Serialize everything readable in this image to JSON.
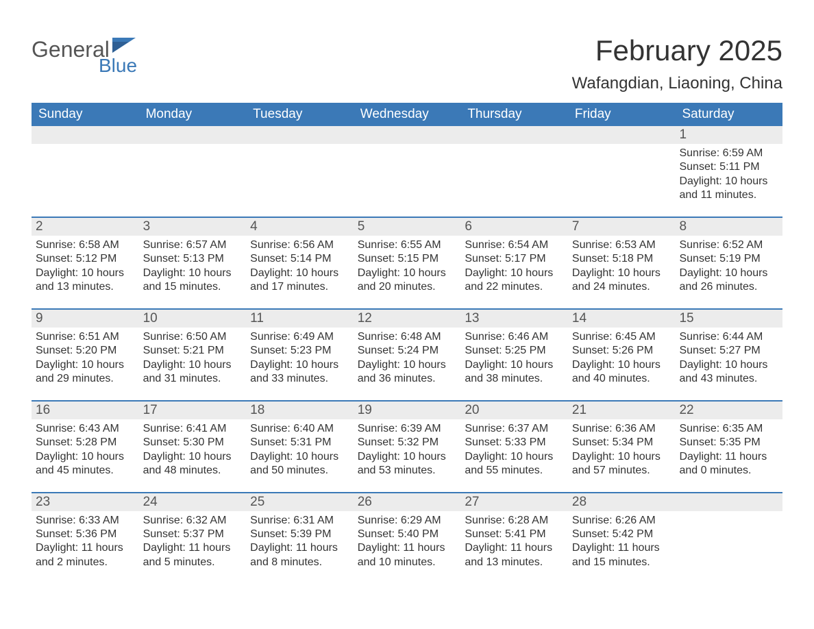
{
  "logo": {
    "word1": "General",
    "word2": "Blue"
  },
  "title": "February 2025",
  "location": "Wafangdian, Liaoning, China",
  "colors": {
    "header_bg": "#3b79b7",
    "header_text": "#ffffff",
    "daynum_bg": "#ececec",
    "daynum_text": "#555555",
    "rule": "#3b79b7",
    "body_text": "#333333",
    "logo_gray": "#555555",
    "logo_blue": "#3b79b7",
    "page_bg": "#ffffff"
  },
  "day_headers": [
    "Sunday",
    "Monday",
    "Tuesday",
    "Wednesday",
    "Thursday",
    "Friday",
    "Saturday"
  ],
  "weeks": [
    [
      null,
      null,
      null,
      null,
      null,
      null,
      {
        "n": "1",
        "sunrise": "Sunrise: 6:59 AM",
        "sunset": "Sunset: 5:11 PM",
        "day1": "Daylight: 10 hours",
        "day2": "and 11 minutes."
      }
    ],
    [
      {
        "n": "2",
        "sunrise": "Sunrise: 6:58 AM",
        "sunset": "Sunset: 5:12 PM",
        "day1": "Daylight: 10 hours",
        "day2": "and 13 minutes."
      },
      {
        "n": "3",
        "sunrise": "Sunrise: 6:57 AM",
        "sunset": "Sunset: 5:13 PM",
        "day1": "Daylight: 10 hours",
        "day2": "and 15 minutes."
      },
      {
        "n": "4",
        "sunrise": "Sunrise: 6:56 AM",
        "sunset": "Sunset: 5:14 PM",
        "day1": "Daylight: 10 hours",
        "day2": "and 17 minutes."
      },
      {
        "n": "5",
        "sunrise": "Sunrise: 6:55 AM",
        "sunset": "Sunset: 5:15 PM",
        "day1": "Daylight: 10 hours",
        "day2": "and 20 minutes."
      },
      {
        "n": "6",
        "sunrise": "Sunrise: 6:54 AM",
        "sunset": "Sunset: 5:17 PM",
        "day1": "Daylight: 10 hours",
        "day2": "and 22 minutes."
      },
      {
        "n": "7",
        "sunrise": "Sunrise: 6:53 AM",
        "sunset": "Sunset: 5:18 PM",
        "day1": "Daylight: 10 hours",
        "day2": "and 24 minutes."
      },
      {
        "n": "8",
        "sunrise": "Sunrise: 6:52 AM",
        "sunset": "Sunset: 5:19 PM",
        "day1": "Daylight: 10 hours",
        "day2": "and 26 minutes."
      }
    ],
    [
      {
        "n": "9",
        "sunrise": "Sunrise: 6:51 AM",
        "sunset": "Sunset: 5:20 PM",
        "day1": "Daylight: 10 hours",
        "day2": "and 29 minutes."
      },
      {
        "n": "10",
        "sunrise": "Sunrise: 6:50 AM",
        "sunset": "Sunset: 5:21 PM",
        "day1": "Daylight: 10 hours",
        "day2": "and 31 minutes."
      },
      {
        "n": "11",
        "sunrise": "Sunrise: 6:49 AM",
        "sunset": "Sunset: 5:23 PM",
        "day1": "Daylight: 10 hours",
        "day2": "and 33 minutes."
      },
      {
        "n": "12",
        "sunrise": "Sunrise: 6:48 AM",
        "sunset": "Sunset: 5:24 PM",
        "day1": "Daylight: 10 hours",
        "day2": "and 36 minutes."
      },
      {
        "n": "13",
        "sunrise": "Sunrise: 6:46 AM",
        "sunset": "Sunset: 5:25 PM",
        "day1": "Daylight: 10 hours",
        "day2": "and 38 minutes."
      },
      {
        "n": "14",
        "sunrise": "Sunrise: 6:45 AM",
        "sunset": "Sunset: 5:26 PM",
        "day1": "Daylight: 10 hours",
        "day2": "and 40 minutes."
      },
      {
        "n": "15",
        "sunrise": "Sunrise: 6:44 AM",
        "sunset": "Sunset: 5:27 PM",
        "day1": "Daylight: 10 hours",
        "day2": "and 43 minutes."
      }
    ],
    [
      {
        "n": "16",
        "sunrise": "Sunrise: 6:43 AM",
        "sunset": "Sunset: 5:28 PM",
        "day1": "Daylight: 10 hours",
        "day2": "and 45 minutes."
      },
      {
        "n": "17",
        "sunrise": "Sunrise: 6:41 AM",
        "sunset": "Sunset: 5:30 PM",
        "day1": "Daylight: 10 hours",
        "day2": "and 48 minutes."
      },
      {
        "n": "18",
        "sunrise": "Sunrise: 6:40 AM",
        "sunset": "Sunset: 5:31 PM",
        "day1": "Daylight: 10 hours",
        "day2": "and 50 minutes."
      },
      {
        "n": "19",
        "sunrise": "Sunrise: 6:39 AM",
        "sunset": "Sunset: 5:32 PM",
        "day1": "Daylight: 10 hours",
        "day2": "and 53 minutes."
      },
      {
        "n": "20",
        "sunrise": "Sunrise: 6:37 AM",
        "sunset": "Sunset: 5:33 PM",
        "day1": "Daylight: 10 hours",
        "day2": "and 55 minutes."
      },
      {
        "n": "21",
        "sunrise": "Sunrise: 6:36 AM",
        "sunset": "Sunset: 5:34 PM",
        "day1": "Daylight: 10 hours",
        "day2": "and 57 minutes."
      },
      {
        "n": "22",
        "sunrise": "Sunrise: 6:35 AM",
        "sunset": "Sunset: 5:35 PM",
        "day1": "Daylight: 11 hours",
        "day2": "and 0 minutes."
      }
    ],
    [
      {
        "n": "23",
        "sunrise": "Sunrise: 6:33 AM",
        "sunset": "Sunset: 5:36 PM",
        "day1": "Daylight: 11 hours",
        "day2": "and 2 minutes."
      },
      {
        "n": "24",
        "sunrise": "Sunrise: 6:32 AM",
        "sunset": "Sunset: 5:37 PM",
        "day1": "Daylight: 11 hours",
        "day2": "and 5 minutes."
      },
      {
        "n": "25",
        "sunrise": "Sunrise: 6:31 AM",
        "sunset": "Sunset: 5:39 PM",
        "day1": "Daylight: 11 hours",
        "day2": "and 8 minutes."
      },
      {
        "n": "26",
        "sunrise": "Sunrise: 6:29 AM",
        "sunset": "Sunset: 5:40 PM",
        "day1": "Daylight: 11 hours",
        "day2": "and 10 minutes."
      },
      {
        "n": "27",
        "sunrise": "Sunrise: 6:28 AM",
        "sunset": "Sunset: 5:41 PM",
        "day1": "Daylight: 11 hours",
        "day2": "and 13 minutes."
      },
      {
        "n": "28",
        "sunrise": "Sunrise: 6:26 AM",
        "sunset": "Sunset: 5:42 PM",
        "day1": "Daylight: 11 hours",
        "day2": "and 15 minutes."
      },
      null
    ]
  ]
}
